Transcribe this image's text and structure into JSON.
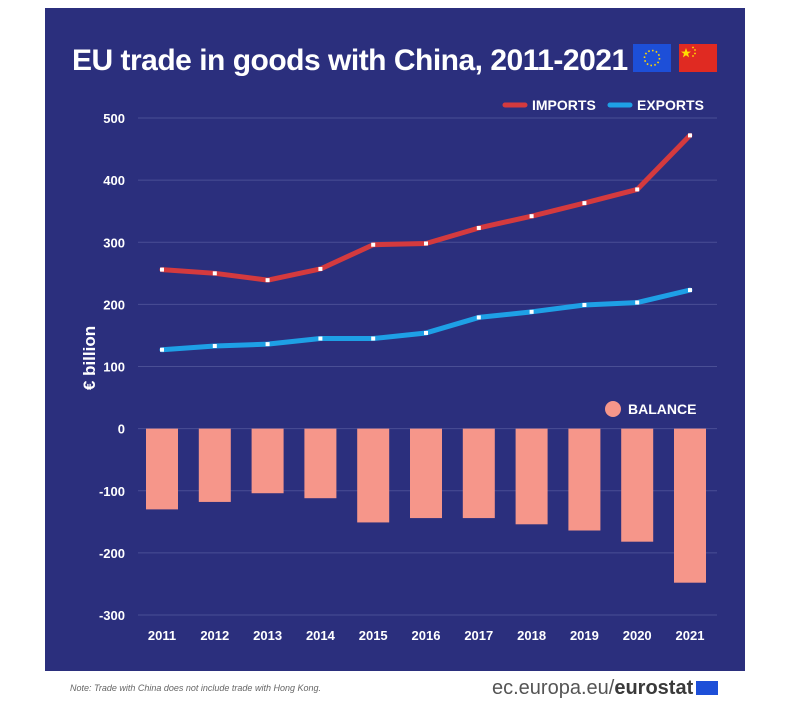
{
  "colors": {
    "background": "#2b2f7d",
    "imports": "#d43a3e",
    "exports": "#1ea0e6",
    "balance": "#f6968a",
    "text": "#ffffff",
    "grid": "#4a4f95"
  },
  "flags": [
    "eu-flag-icon",
    "china-flag-icon"
  ],
  "footer": {
    "note": "Note: Trade with China does not include trade with Hong Kong.",
    "source_prefix": "ec.europa.eu/",
    "source_brand": "eurostat"
  },
  "chart_data": {
    "type": "line",
    "title": "EU trade in goods with China, 2011-2021",
    "ylabel": "€ billion",
    "xlabel": "",
    "ylim": [
      -300,
      500
    ],
    "yticks": [
      -300,
      -200,
      -100,
      0,
      100,
      200,
      300,
      400,
      500
    ],
    "grid": true,
    "legend_position": "top-right",
    "x": [
      "2011",
      "2012",
      "2013",
      "2014",
      "2015",
      "2016",
      "2017",
      "2018",
      "2019",
      "2020",
      "2021"
    ],
    "series": [
      {
        "name": "IMPORTS",
        "type": "line",
        "values": [
          256,
          250,
          239,
          257,
          296,
          298,
          323,
          342,
          363,
          385,
          472
        ]
      },
      {
        "name": "EXPORTS",
        "type": "line",
        "values": [
          127,
          133,
          136,
          145,
          145,
          154,
          179,
          188,
          199,
          203,
          223
        ]
      },
      {
        "name": "BALANCE",
        "type": "bar",
        "values": [
          -130,
          -118,
          -104,
          -112,
          -151,
          -144,
          -144,
          -154,
          -164,
          -182,
          -248
        ]
      }
    ]
  }
}
